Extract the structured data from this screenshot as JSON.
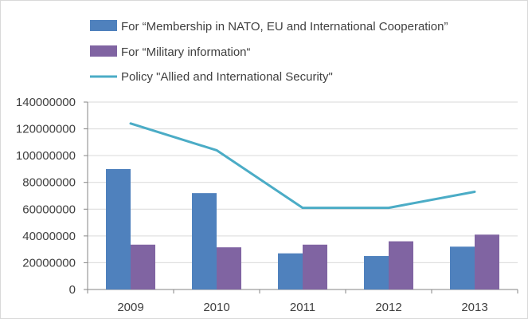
{
  "chart_data": {
    "type": "bar",
    "categories": [
      "2009",
      "2010",
      "2011",
      "2012",
      "2013"
    ],
    "series": [
      {
        "name": "For “Membership in NATO, EU and International Cooperation”",
        "type": "bar",
        "color": "#4f81bd",
        "values": [
          90000000,
          72000000,
          27000000,
          25000000,
          32000000
        ]
      },
      {
        "name": "For “Military information“",
        "type": "bar",
        "color": "#8064a2",
        "values": [
          33500000,
          31500000,
          33500000,
          36000000,
          41000000
        ]
      },
      {
        "name": "Policy \"Allied and International Security\"",
        "type": "line",
        "color": "#4bacc6",
        "values": [
          124000000,
          104000000,
          61000000,
          61000000,
          73000000
        ]
      }
    ],
    "yticks": [
      "0",
      "20000000",
      "40000000",
      "60000000",
      "80000000",
      "100000000",
      "120000000",
      "140000000"
    ],
    "ylim": [
      0,
      140000000
    ],
    "grid": true,
    "legend_position": "top-left"
  }
}
